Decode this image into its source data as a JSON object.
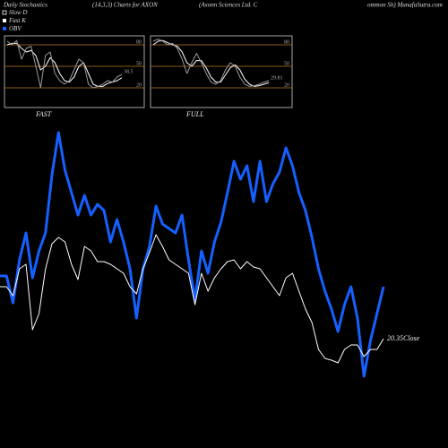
{
  "header": {
    "parts": [
      "Daily Stochastics",
      "(14,3,3) Charts for AXON",
      "(Axonn Sciences Ltd. C",
      "ommon Sh) MunafaSutra.com"
    ]
  },
  "chart_data": [
    {
      "type": "line",
      "ylim": [
        0,
        500
      ],
      "y2lim": [
        14.25,
        39.25
      ],
      "series": [
        {
          "name": "OBV",
          "color": "#1560ff",
          "values": [
            192,
            192,
            162,
            210,
            240,
            190,
            220,
            240,
            305,
            352,
            310,
            285,
            260,
            282,
            260,
            272,
            265,
            230,
            255,
            230,
            200,
            145,
            200,
            225,
            270,
            250,
            245,
            240,
            260,
            210,
            165,
            220,
            195,
            230,
            252,
            285,
            320,
            300,
            315,
            275,
            320,
            275,
            295,
            308,
            335,
            315,
            285,
            265,
            235,
            200,
            175,
            155,
            130,
            160,
            180,
            145,
            80,
            120,
            150,
            180
          ]
        },
        {
          "name": "Close",
          "color": "#ffffff",
          "axis": "y2",
          "values": [
            23.25,
            23.25,
            22.75,
            24.25,
            24.5,
            20.85,
            21.75,
            24.25,
            25.65,
            26.0,
            25.75,
            24.5,
            23.65,
            25.5,
            25.25,
            24.65,
            24.65,
            24.5,
            24.25,
            24.0,
            23.25,
            22.85,
            24.25,
            25.15,
            26.15,
            25.5,
            24.75,
            24.5,
            24.25,
            24.0,
            22.25,
            24.0,
            23.0,
            23.75,
            24.25,
            24.65,
            24.75,
            24.25,
            24.65,
            24.35,
            24.25,
            23.75,
            23.25,
            22.75,
            23.75,
            24.0,
            23.0,
            22.0,
            21.25,
            19.75,
            19.25,
            19.15,
            19.0,
            19.75,
            20.0,
            20.0,
            19.35,
            19.75,
            19.75,
            20.35
          ]
        }
      ]
    },
    {
      "type": "line",
      "title": "FAST",
      "ylim": [
        -7.5,
        92.5
      ],
      "yticks": [
        20,
        50,
        80
      ],
      "grid": true,
      "grid_color": "#b8741a",
      "series": [
        {
          "name": "Slow D",
          "color": "#ffffff",
          "values": [
            80,
            82,
            82,
            75,
            70,
            72,
            65,
            45,
            50,
            62,
            55,
            40,
            30,
            28,
            35,
            50,
            55,
            40,
            25,
            22,
            22,
            26,
            28,
            30,
            34
          ]
        },
        {
          "name": "Fast K",
          "color": "#9a9a9a",
          "values": [
            85,
            80,
            86,
            60,
            75,
            78,
            50,
            20,
            65,
            70,
            40,
            30,
            25,
            30,
            45,
            60,
            55,
            25,
            20,
            22,
            25,
            30,
            28,
            35,
            38.5
          ]
        }
      ]
    },
    {
      "type": "line",
      "title": "FULL",
      "ylim": [
        -7.5,
        92.5
      ],
      "yticks": [
        20,
        50,
        80
      ],
      "grid": true,
      "grid_color": "#b8741a",
      "series": [
        {
          "name": "Slow D",
          "color": "#ffffff",
          "values": [
            80,
            85,
            86,
            83,
            80,
            78,
            70,
            55,
            50,
            58,
            58,
            48,
            35,
            28,
            28,
            38,
            48,
            52,
            45,
            32,
            25,
            22,
            23,
            25,
            27
          ]
        },
        {
          "name": "Fast K",
          "color": "#9a9a9a",
          "values": [
            85,
            88,
            85,
            80,
            82,
            75,
            60,
            40,
            55,
            68,
            55,
            40,
            28,
            25,
            30,
            45,
            55,
            50,
            35,
            25,
            22,
            23,
            25,
            28,
            29.81
          ]
        }
      ]
    }
  ]
}
